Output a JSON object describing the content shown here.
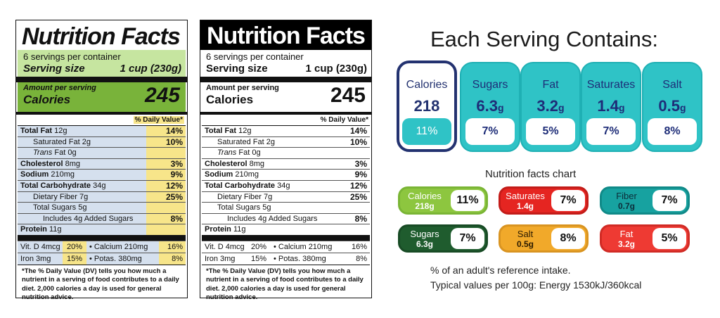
{
  "label1": {
    "title": "Nutrition Facts",
    "servings": "6 servings per container",
    "serving_size_label": "Serving size",
    "serving_size_value": "1 cup (230g)",
    "amount_per_serving": "Amount per serving",
    "calories_label": "Calories",
    "calories_value": "245",
    "dv_header": "% Daily Value*",
    "rows": [
      {
        "name": "Total Fat",
        "amount": "12g",
        "pct": "14%"
      },
      {
        "name": "Saturated Fat",
        "amount": "2g",
        "pct": "10%"
      },
      {
        "name": "Trans",
        "amount": "Fat 0g",
        "pct": ""
      },
      {
        "name": "Cholesterol",
        "amount": "8mg",
        "pct": "3%"
      },
      {
        "name": "Sodium",
        "amount": "210mg",
        "pct": "9%"
      },
      {
        "name": "Total Carbohydrate",
        "amount": "34g",
        "pct": "12%"
      },
      {
        "name": "Dietary Fiber",
        "amount": "7g",
        "pct": "25%"
      },
      {
        "name": "Total Sugars",
        "amount": "5g",
        "pct": ""
      },
      {
        "name": "Includes 4g Added Sugars",
        "amount": "",
        "pct": "8%"
      },
      {
        "name": "Protein",
        "amount": "11g",
        "pct": ""
      }
    ],
    "vit_rows": [
      {
        "a": "Vit. D 4mcg",
        "a_pct": "20%",
        "b": "•  Calcium 210mg",
        "b_pct": "16%"
      },
      {
        "a": "Iron 3mg",
        "a_pct": "15%",
        "b": "•  Potas. 380mg",
        "b_pct": "8%"
      }
    ],
    "footnote": "*The % Daily Value (DV) tells you how much a nutrient in a serving of food contributes to a daily diet. 2,000 calories a day is used for general nutrition advice."
  },
  "label2": {
    "title": "Nutrition Facts",
    "servings": "6 servings per container",
    "serving_size_label": "Serving size",
    "serving_size_value": "1 cup (230g)",
    "amount_per_serving": "Amount per serving",
    "calories_label": "Calories",
    "calories_value": "245",
    "dv_header": "% Daily Value*",
    "rows": [
      {
        "name": "Total Fat",
        "amount": "12g",
        "pct": "14%"
      },
      {
        "name": "Saturated Fat",
        "amount": "2g",
        "pct": "10%"
      },
      {
        "name": "Trans",
        "amount": "Fat 0g",
        "pct": ""
      },
      {
        "name": "Cholesterol",
        "amount": "8mg",
        "pct": "3%"
      },
      {
        "name": "Sodium",
        "amount": "210mg",
        "pct": "9%"
      },
      {
        "name": "Total Carbohydrate",
        "amount": "34g",
        "pct": "12%"
      },
      {
        "name": "Dietary Fiber",
        "amount": "7g",
        "pct": "25%"
      },
      {
        "name": "Total Sugars",
        "amount": "5g",
        "pct": ""
      },
      {
        "name": "Includes 4g Added Sugars",
        "amount": "",
        "pct": "8%"
      },
      {
        "name": "Protein",
        "amount": "11g",
        "pct": ""
      }
    ],
    "vit_rows": [
      {
        "a": "Vit. D 4mcg",
        "a_pct": "20%",
        "b": "•  Calcium 210mg",
        "b_pct": "16%"
      },
      {
        "a": "Iron 3mg",
        "a_pct": "15%",
        "b": "•  Potas. 380mg",
        "b_pct": "8%"
      }
    ],
    "footnote": "*The % Daily Value (DV) tells you how much a nutrient in a serving of food contributes to a daily diet. 2,000 calories a day is used for general nutrition advice."
  },
  "serving_panel": {
    "title": "Each Serving Contains:",
    "cans": [
      {
        "name": "Calories",
        "value": "218",
        "unit": "",
        "pct": "11%"
      },
      {
        "name": "Sugars",
        "value": "6.3",
        "unit": "g",
        "pct": "7%"
      },
      {
        "name": "Fat",
        "value": "3.2",
        "unit": "g",
        "pct": "5%"
      },
      {
        "name": "Saturates",
        "value": "1.4",
        "unit": "g",
        "pct": "7%"
      },
      {
        "name": "Salt",
        "value": "0.5",
        "unit": "g",
        "pct": "8%"
      }
    ]
  },
  "chart": {
    "title": "Nutrition facts chart",
    "pills": [
      {
        "name": "Calories",
        "value": "218",
        "unit": "g",
        "pct": "11%",
        "color": "#8dc63f"
      },
      {
        "name": "Saturates",
        "value": "1.4",
        "unit": "g",
        "pct": "7%",
        "color": "#e52521"
      },
      {
        "name": "Fiber",
        "value": "0.7",
        "unit": "g",
        "pct": "7%",
        "color": "#17a2a0"
      },
      {
        "name": "Sugars",
        "value": "6.3",
        "unit": "g",
        "pct": "7%",
        "color": "#1f5c2e"
      },
      {
        "name": "Salt",
        "value": "0.5",
        "unit": "g",
        "pct": "8%",
        "color": "#f1a92a"
      },
      {
        "name": "Fat",
        "value": "3.2",
        "unit": "g",
        "pct": "5%",
        "color": "#ee3a33"
      }
    ]
  },
  "notes": {
    "line1": "% of an adult's reference intake.",
    "line2": "Typical values per 100g: Energy 1530kJ/360kcal"
  }
}
